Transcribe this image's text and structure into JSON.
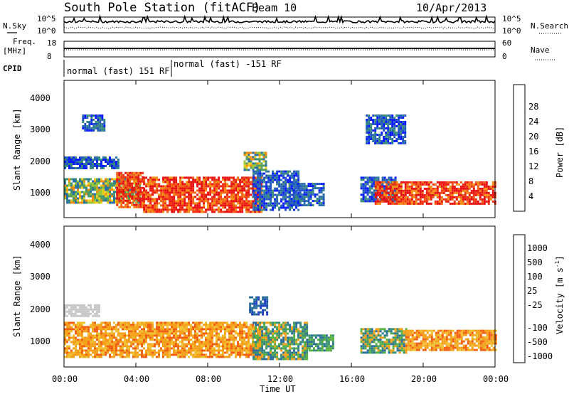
{
  "header": {
    "title": "South Pole Station (fitACF)",
    "beam": "Beam 10",
    "date": "10/Apr/2013"
  },
  "noise_panel": {
    "left_label": "N.Sky",
    "right_label": "N.Search",
    "y_ticks_left": [
      "10^5",
      "10^0"
    ],
    "y_ticks_right": [
      "10^5",
      "10^0"
    ]
  },
  "freq_panel": {
    "left_label_line1": "Freq.",
    "left_label_line2": "[MHz]",
    "right_label": "Nave",
    "y_ticks_left": [
      "18",
      "8"
    ],
    "y_ticks_right": [
      "60",
      "0"
    ]
  },
  "cpid": {
    "label": "CPID",
    "segments": [
      "normal (fast) 151 RF",
      "normal (fast) -151 RF"
    ]
  },
  "x_axis": {
    "label": "Time UT",
    "ticks": [
      "00:00",
      "04:00",
      "08:00",
      "12:00",
      "16:00",
      "20:00",
      "00:00"
    ]
  },
  "power_panel": {
    "ylabel": "Slant Range [km]",
    "y_ticks": [
      "1000",
      "2000",
      "3000",
      "4000"
    ],
    "colorbar_label": "Power [dB]",
    "colorbar_ticks": [
      "4",
      "8",
      "12",
      "16",
      "20",
      "24",
      "28"
    ],
    "colorbar_colors": [
      "#0a1aff",
      "#1f50c8",
      "#2a6fa8",
      "#3a8b7a",
      "#55a05a",
      "#9ac83a",
      "#f0d020",
      "#f5b020",
      "#f58c10",
      "#f36010",
      "#f03010",
      "#e81010"
    ]
  },
  "velocity_panel": {
    "ylabel": "Slant Range [km]",
    "y_ticks": [
      "1000",
      "2000",
      "3000",
      "4000"
    ],
    "colorbar_label": "Velocity [m s",
    "colorbar_label_sup": "-1",
    "colorbar_label_end": "]",
    "colorbar_ticks": [
      "-1000",
      "-500",
      "-100",
      "-25",
      "25",
      "100",
      "500",
      "1000"
    ],
    "colorbar_colors": [
      "#e81010",
      "#f06010",
      "#f5a018",
      "#f0c030",
      "#c8c8c8",
      "#c8c8c8",
      "#55b040",
      "#3a9070",
      "#2a6f9a",
      "#1f40c0"
    ]
  },
  "chart_data": {
    "type": "heatmap",
    "x_range_hours": [
      0,
      24
    ],
    "y_range_km": [
      180,
      4600
    ],
    "power_regions": [
      {
        "t0": 0.0,
        "t1": 4.2,
        "r0": 650,
        "r1": 1450,
        "level": "green"
      },
      {
        "t0": 0.0,
        "t1": 3.0,
        "r0": 1750,
        "r1": 2150,
        "level": "blue"
      },
      {
        "t0": 2.9,
        "t1": 4.4,
        "r0": 500,
        "r1": 1650,
        "level": "red"
      },
      {
        "t0": 4.4,
        "t1": 11.0,
        "r0": 400,
        "r1": 1500,
        "level": "red"
      },
      {
        "t0": 10.5,
        "t1": 13.0,
        "r0": 400,
        "r1": 1700,
        "level": "blue"
      },
      {
        "t0": 10.0,
        "t1": 11.2,
        "r0": 1700,
        "r1": 2300,
        "level": "green"
      },
      {
        "t0": 12.5,
        "t1": 14.5,
        "r0": 600,
        "r1": 1300,
        "level": "blue"
      },
      {
        "t0": 16.5,
        "t1": 18.5,
        "r0": 700,
        "r1": 1500,
        "level": "blue"
      },
      {
        "t0": 17.3,
        "t1": 24.0,
        "r0": 600,
        "r1": 1350,
        "level": "red"
      },
      {
        "t0": 16.8,
        "t1": 19.0,
        "r0": 2600,
        "r1": 3500,
        "level": "blue"
      },
      {
        "t0": 1.0,
        "t1": 2.2,
        "r0": 3000,
        "r1": 3500,
        "level": "blue"
      }
    ],
    "velocity_regions": [
      {
        "t0": 0.0,
        "t1": 11.0,
        "r0": 500,
        "r1": 1600,
        "level": "-100"
      },
      {
        "t0": 0.0,
        "t1": 2.0,
        "r0": 1800,
        "r1": 2150,
        "level": "25"
      },
      {
        "t0": 10.5,
        "t1": 13.5,
        "r0": 400,
        "r1": 1600,
        "level": "100"
      },
      {
        "t0": 13.5,
        "t1": 15.0,
        "r0": 700,
        "r1": 1200,
        "level": "500"
      },
      {
        "t0": 16.5,
        "t1": 19.0,
        "r0": 600,
        "r1": 1400,
        "level": "100"
      },
      {
        "t0": 19.0,
        "t1": 24.0,
        "r0": 700,
        "r1": 1350,
        "level": "-100"
      },
      {
        "t0": 10.3,
        "t1": 11.3,
        "r0": 1800,
        "r1": 2400,
        "level": "1000"
      }
    ]
  }
}
